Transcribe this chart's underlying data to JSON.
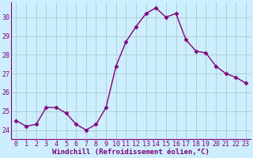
{
  "x": [
    0,
    1,
    2,
    3,
    4,
    5,
    6,
    7,
    8,
    9,
    10,
    11,
    12,
    13,
    14,
    15,
    16,
    17,
    18,
    19,
    20,
    21,
    22,
    23
  ],
  "y": [
    24.5,
    24.2,
    24.3,
    25.2,
    25.2,
    24.9,
    24.3,
    24.0,
    24.3,
    25.2,
    27.4,
    28.7,
    29.5,
    30.2,
    30.5,
    30.0,
    30.2,
    28.8,
    28.2,
    28.1,
    27.4,
    27.0,
    26.8,
    26.5
  ],
  "line_color": "#800080",
  "marker": "D",
  "marker_size": 2.5,
  "line_width": 1.0,
  "bg_color": "#cceeff",
  "grid_color": "#aacccc",
  "xlabel": "Windchill (Refroidissement éolien,°C)",
  "xlabel_fontsize": 6.5,
  "tick_fontsize": 6.0,
  "tick_color": "#800080",
  "label_color": "#800080",
  "ylim": [
    23.5,
    30.8
  ],
  "xlim": [
    -0.5,
    23.5
  ],
  "yticks": [
    24,
    25,
    26,
    27,
    28,
    29,
    30
  ],
  "xticks": [
    0,
    1,
    2,
    3,
    4,
    5,
    6,
    7,
    8,
    9,
    10,
    11,
    12,
    13,
    14,
    15,
    16,
    17,
    18,
    19,
    20,
    21,
    22,
    23
  ]
}
